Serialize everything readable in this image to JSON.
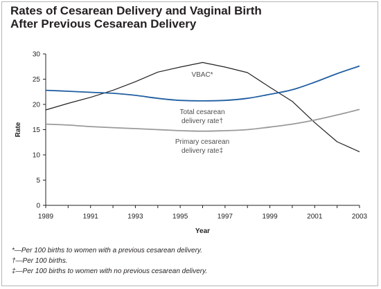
{
  "title_lines": [
    "Rates of Cesarean Delivery and Vaginal Birth",
    "After Previous Cesarean Delivery"
  ],
  "footnotes": [
    "*—Per 100 births to women with a previous cesarean delivery.",
    "†—Per 100 births.",
    "‡—Per 100 births to women with no previous cesarean delivery."
  ],
  "colors": {
    "vbac": "#231f20",
    "total": "#1f5ea0",
    "primary": "#9a9a9a",
    "axis": "#231f20"
  },
  "chart_data": {
    "type": "line",
    "xlabel": "Year",
    "ylabel": "Rate",
    "xlim": [
      1989,
      2003
    ],
    "ylim": [
      0,
      30
    ],
    "x_ticks": [
      1989,
      1991,
      1993,
      1995,
      1997,
      1999,
      2001,
      2003
    ],
    "y_ticks": [
      0,
      5,
      10,
      15,
      20,
      25,
      30
    ],
    "grid": false,
    "legend": "none",
    "x": [
      1989,
      1990,
      1991,
      1992,
      1993,
      1994,
      1995,
      1996,
      1997,
      1998,
      1999,
      2000,
      2001,
      2002,
      2003
    ],
    "series": [
      {
        "key": "vbac",
        "name": "VBAC*",
        "values": [
          18.9,
          20.2,
          21.4,
          22.8,
          24.5,
          26.4,
          27.4,
          28.3,
          27.4,
          26.3,
          23.4,
          20.6,
          16.4,
          12.6,
          10.6
        ]
      },
      {
        "key": "total",
        "name": "Total cesarean delivery rate†",
        "label_lines": [
          "Total cesarean",
          "delivery rate†"
        ],
        "values": [
          22.8,
          22.6,
          22.4,
          22.2,
          21.8,
          21.2,
          20.8,
          20.7,
          20.8,
          21.2,
          22.0,
          22.9,
          24.4,
          26.1,
          27.6
        ]
      },
      {
        "key": "primary",
        "name": "Primary cesarean delivery rate‡",
        "label_lines": [
          "Primary cesarean",
          "delivery rate‡"
        ],
        "values": [
          16.1,
          15.9,
          15.6,
          15.4,
          15.2,
          15.0,
          14.8,
          14.7,
          14.8,
          15.0,
          15.5,
          16.1,
          16.9,
          17.9,
          19.0
        ]
      }
    ]
  }
}
